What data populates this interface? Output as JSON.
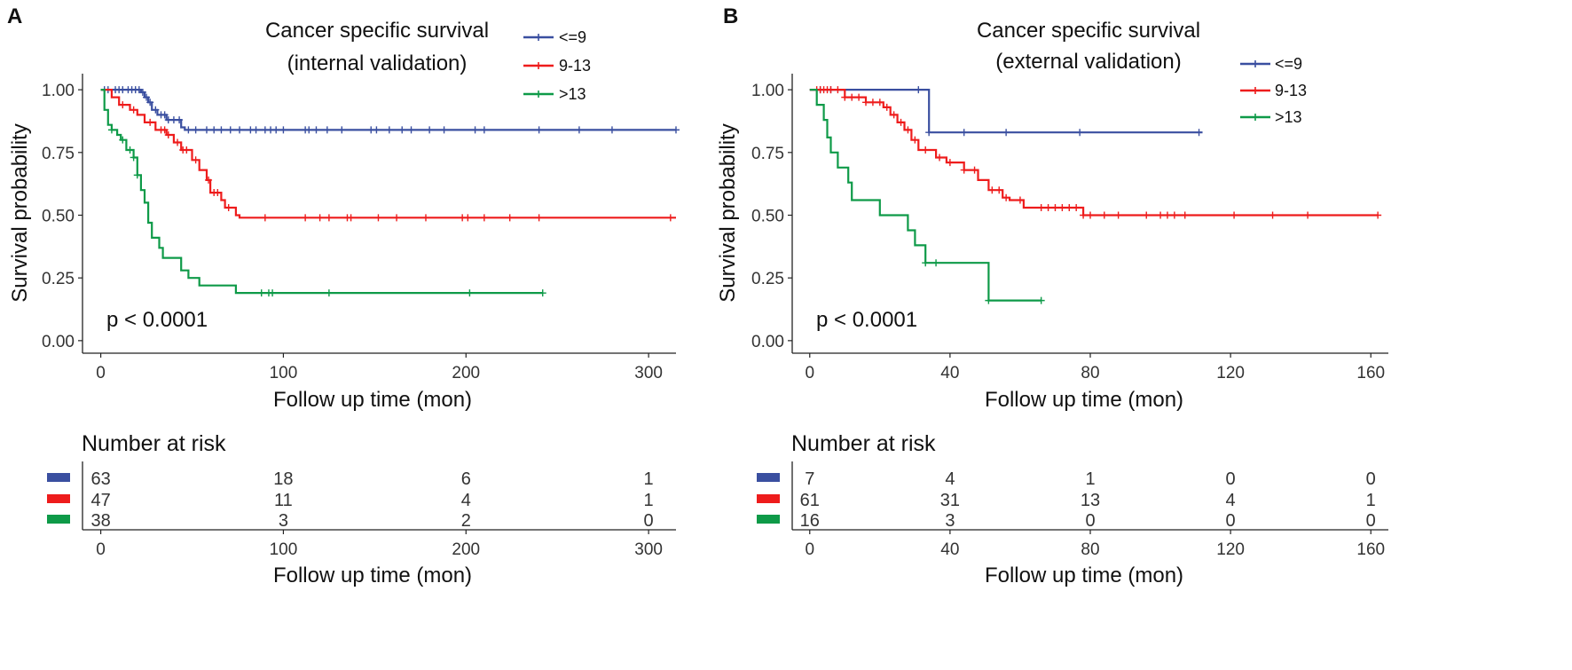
{
  "colors": {
    "low": "#3A4FA0",
    "mid": "#EE1C1C",
    "high": "#0E9A48",
    "axis": "#222222",
    "text": "#111111"
  },
  "chart_data": [
    {
      "type": "line",
      "panel_label": "A",
      "title_line1": "Cancer specific survival",
      "title_line2": "(internal validation)",
      "xlabel": "Follow up time (mon)",
      "ylabel": "Survival probability",
      "xlim": [
        -10,
        315
      ],
      "ylim": [
        -0.05,
        1.05
      ],
      "xticks": [
        0,
        100,
        200,
        300
      ],
      "yticks": [
        0.0,
        0.25,
        0.5,
        0.75,
        1.0
      ],
      "ytick_labels": [
        "0.00",
        "0.25",
        "0.50",
        "0.75",
        "1.00"
      ],
      "pvalue": "p < 0.0001",
      "series": [
        {
          "name": "<=9",
          "color_key": "low",
          "steps": [
            [
              0,
              1.0
            ],
            [
              22,
              0.99
            ],
            [
              24,
              0.97
            ],
            [
              26,
              0.95
            ],
            [
              28,
              0.92
            ],
            [
              31,
              0.9
            ],
            [
              36,
              0.88
            ],
            [
              44,
              0.85
            ],
            [
              46,
              0.84
            ],
            [
              315,
              0.84
            ]
          ],
          "censors": [
            2,
            4,
            8,
            10,
            12,
            15,
            17,
            19,
            21,
            23,
            25,
            27,
            30,
            33,
            35,
            37,
            40,
            43,
            48,
            52,
            58,
            62,
            66,
            71,
            76,
            82,
            85,
            90,
            93,
            96,
            100,
            112,
            114,
            118,
            124,
            132,
            148,
            151,
            158,
            165,
            170,
            180,
            188,
            205,
            210,
            240,
            262,
            280,
            315
          ]
        },
        {
          "name": "9-13",
          "color_key": "mid",
          "steps": [
            [
              0,
              1.0
            ],
            [
              6,
              0.97
            ],
            [
              10,
              0.94
            ],
            [
              16,
              0.92
            ],
            [
              20,
              0.9
            ],
            [
              24,
              0.87
            ],
            [
              30,
              0.84
            ],
            [
              36,
              0.82
            ],
            [
              40,
              0.79
            ],
            [
              44,
              0.76
            ],
            [
              50,
              0.72
            ],
            [
              54,
              0.68
            ],
            [
              58,
              0.64
            ],
            [
              60,
              0.59
            ],
            [
              66,
              0.56
            ],
            [
              68,
              0.53
            ],
            [
              74,
              0.5
            ],
            [
              76,
              0.49
            ],
            [
              315,
              0.49
            ]
          ],
          "censors": [
            12,
            18,
            27,
            33,
            35,
            37,
            42,
            45,
            47,
            52,
            59,
            62,
            64,
            70,
            90,
            112,
            120,
            125,
            135,
            137,
            152,
            162,
            178,
            198,
            201,
            210,
            224,
            240,
            312
          ]
        },
        {
          "name": ">13",
          "color_key": "high",
          "steps": [
            [
              0,
              1.0
            ],
            [
              2,
              0.92
            ],
            [
              4,
              0.86
            ],
            [
              6,
              0.84
            ],
            [
              9,
              0.82
            ],
            [
              11,
              0.8
            ],
            [
              14,
              0.76
            ],
            [
              18,
              0.73
            ],
            [
              20,
              0.66
            ],
            [
              22,
              0.6
            ],
            [
              24,
              0.55
            ],
            [
              26,
              0.47
            ],
            [
              28,
              0.41
            ],
            [
              32,
              0.37
            ],
            [
              34,
              0.33
            ],
            [
              44,
              0.28
            ],
            [
              48,
              0.25
            ],
            [
              54,
              0.22
            ],
            [
              74,
              0.19
            ],
            [
              242,
              0.19
            ]
          ],
          "censors": [
            6,
            12,
            16,
            18,
            20,
            88,
            92,
            94,
            125,
            202,
            242
          ]
        }
      ],
      "risk_table": {
        "title": "Number at risk",
        "xlabel": "Follow up time (mon)",
        "xticks": [
          0,
          100,
          200,
          300
        ],
        "rows": [
          {
            "name": "<=9",
            "color_key": "low",
            "values": [
              63,
              18,
              6,
              1
            ]
          },
          {
            "name": "9-13",
            "color_key": "mid",
            "values": [
              47,
              11,
              4,
              1
            ]
          },
          {
            "name": ">13",
            "color_key": "high",
            "values": [
              38,
              3,
              2,
              0
            ]
          }
        ]
      }
    },
    {
      "type": "line",
      "panel_label": "B",
      "title_line1": "Cancer specific survival",
      "title_line2": "(external validation)",
      "xlabel": "Follow up time (mon)",
      "ylabel": "Survival probability",
      "xlim": [
        -5,
        165
      ],
      "ylim": [
        -0.05,
        1.05
      ],
      "xticks": [
        0,
        40,
        80,
        120,
        160
      ],
      "yticks": [
        0.0,
        0.25,
        0.5,
        0.75,
        1.0
      ],
      "ytick_labels": [
        "0.00",
        "0.25",
        "0.50",
        "0.75",
        "1.00"
      ],
      "pvalue": "p < 0.0001",
      "series": [
        {
          "name": "<=9",
          "color_key": "low",
          "steps": [
            [
              0,
              1.0
            ],
            [
              34,
              0.83
            ],
            [
              112,
              0.83
            ]
          ],
          "censors": [
            3,
            6,
            31,
            34,
            44,
            56,
            77,
            111
          ]
        },
        {
          "name": "9-13",
          "color_key": "mid",
          "steps": [
            [
              0,
              1.0
            ],
            [
              10,
              0.97
            ],
            [
              16,
              0.95
            ],
            [
              21,
              0.93
            ],
            [
              23,
              0.9
            ],
            [
              25,
              0.87
            ],
            [
              27,
              0.84
            ],
            [
              29,
              0.8
            ],
            [
              31,
              0.76
            ],
            [
              36,
              0.73
            ],
            [
              39,
              0.71
            ],
            [
              44,
              0.68
            ],
            [
              48,
              0.64
            ],
            [
              51,
              0.6
            ],
            [
              55,
              0.57
            ],
            [
              57,
              0.56
            ],
            [
              61,
              0.53
            ],
            [
              77,
              0.53
            ],
            [
              78,
              0.5
            ],
            [
              162,
              0.5
            ]
          ],
          "censors": [
            2,
            3,
            4,
            5,
            6,
            8,
            10,
            12,
            14,
            16,
            18,
            20,
            22,
            24,
            26,
            28,
            30,
            33,
            37,
            40,
            44,
            47,
            52,
            54,
            56,
            60,
            66,
            68,
            70,
            72,
            74,
            76,
            78,
            80,
            84,
            88,
            96,
            100,
            102,
            104,
            107,
            121,
            132,
            142,
            162
          ]
        },
        {
          "name": ">13",
          "color_key": "high",
          "steps": [
            [
              0,
              1.0
            ],
            [
              2,
              0.94
            ],
            [
              4,
              0.88
            ],
            [
              5,
              0.81
            ],
            [
              6,
              0.75
            ],
            [
              8,
              0.69
            ],
            [
              11,
              0.63
            ],
            [
              12,
              0.56
            ],
            [
              20,
              0.5
            ],
            [
              24,
              0.5
            ],
            [
              28,
              0.44
            ],
            [
              30,
              0.38
            ],
            [
              33,
              0.31
            ],
            [
              50,
              0.31
            ],
            [
              51,
              0.16
            ],
            [
              66,
              0.16
            ]
          ],
          "censors": [
            33,
            36,
            51,
            66
          ]
        }
      ],
      "risk_table": {
        "title": "Number at risk",
        "xlabel": "Follow up time (mon)",
        "xticks": [
          0,
          40,
          80,
          120,
          160
        ],
        "rows": [
          {
            "name": "<=9",
            "color_key": "low",
            "values": [
              7,
              4,
              1,
              0,
              0
            ]
          },
          {
            "name": "9-13",
            "color_key": "mid",
            "values": [
              61,
              31,
              13,
              4,
              1
            ]
          },
          {
            "name": ">13",
            "color_key": "high",
            "values": [
              16,
              3,
              0,
              0,
              0
            ]
          }
        ]
      }
    }
  ]
}
